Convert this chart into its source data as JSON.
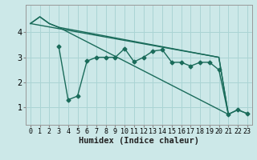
{
  "xlabel": "Humidex (Indice chaleur)",
  "bg_color": "#cce8e8",
  "grid_color": "#aad4d4",
  "line_color": "#1a6b5a",
  "x_ticks": [
    0,
    1,
    2,
    3,
    4,
    5,
    6,
    7,
    8,
    9,
    10,
    11,
    12,
    13,
    14,
    15,
    16,
    17,
    18,
    19,
    20,
    21,
    22,
    23
  ],
  "y_ticks": [
    1,
    2,
    3,
    4
  ],
  "ylim": [
    0.3,
    5.1
  ],
  "xlim": [
    -0.5,
    23.5
  ],
  "line1_x": [
    0,
    1,
    2,
    3,
    21
  ],
  "line1_y": [
    4.35,
    4.62,
    4.35,
    4.2,
    0.72
  ],
  "line2_x": [
    0,
    1,
    2,
    3,
    20,
    21
  ],
  "line2_y": [
    4.35,
    4.62,
    4.35,
    4.2,
    3.0,
    0.72
  ],
  "line3_x": [
    3,
    4,
    5,
    6,
    7,
    8,
    9,
    10,
    11,
    12,
    13,
    14,
    15,
    16,
    17,
    18,
    19,
    20,
    21,
    22,
    23
  ],
  "line3_y": [
    3.45,
    1.3,
    1.45,
    2.85,
    3.0,
    3.0,
    3.0,
    3.35,
    2.82,
    3.0,
    3.25,
    3.3,
    2.8,
    2.8,
    2.65,
    2.8,
    2.8,
    2.5,
    0.72,
    0.9,
    0.75
  ],
  "line4_x": [
    0,
    20,
    21,
    22,
    23
  ],
  "line4_y": [
    4.35,
    3.0,
    0.72,
    0.9,
    0.75
  ],
  "marker_size": 2.5,
  "line_width": 1.0,
  "font_size": 6.5,
  "xlabel_fontsize": 7.5
}
